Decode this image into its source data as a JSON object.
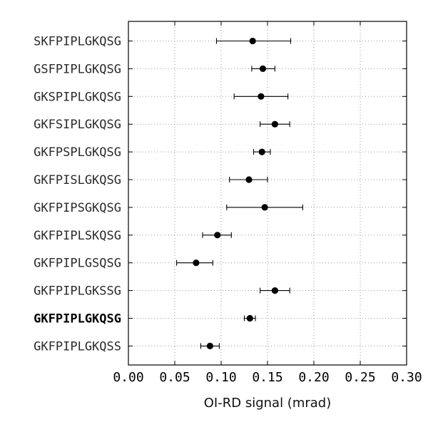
{
  "chart_data": {
    "type": "scatter",
    "orientation": "horizontal-errorbar",
    "xlabel": "OI-RD signal (mrad)",
    "ylabel": "",
    "title": "",
    "xlim": [
      0.0,
      0.3
    ],
    "xticks": [
      "0.00",
      "0.05",
      "0.10",
      "0.15",
      "0.20",
      "0.25",
      "0.30"
    ],
    "grid": true,
    "highlighted_category": "GKFPIPLGKQSG",
    "categories": [
      "SKFPIPLGKQSG",
      "GSFPIPLGKQSG",
      "GKSPIPLGKQSG",
      "GKFSIPLGKQSG",
      "GKFPSPLGKQSG",
      "GKFPISLGKQSG",
      "GKFPIPSGKQSG",
      "GKFPIPLSKQSG",
      "GKFPIPLGSQSG",
      "GKFPIPLGKSSG",
      "GKFPIPLGKQSG",
      "GKFPIPLGKQSS"
    ],
    "values": [
      0.134,
      0.145,
      0.143,
      0.158,
      0.144,
      0.13,
      0.147,
      0.096,
      0.073,
      0.158,
      0.131,
      0.088
    ],
    "err_low": [
      0.095,
      0.133,
      0.114,
      0.142,
      0.135,
      0.109,
      0.106,
      0.08,
      0.052,
      0.142,
      0.125,
      0.078
    ],
    "err_high": [
      0.175,
      0.158,
      0.172,
      0.174,
      0.153,
      0.15,
      0.188,
      0.111,
      0.091,
      0.174,
      0.137,
      0.098
    ]
  }
}
